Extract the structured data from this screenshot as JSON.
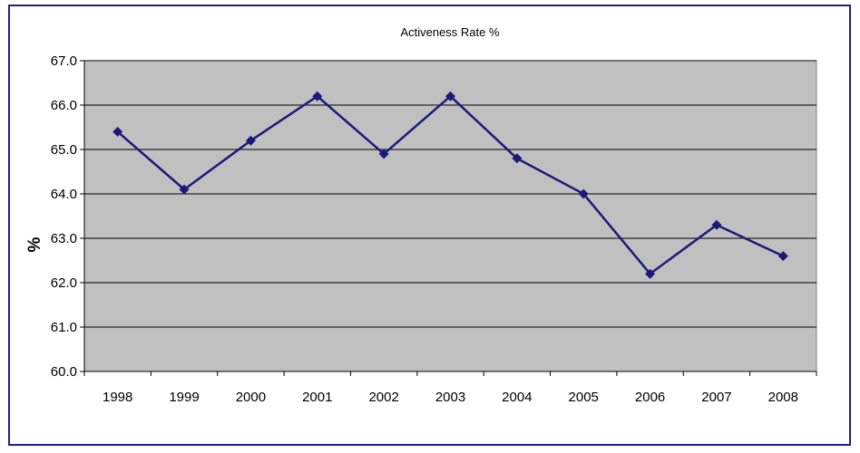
{
  "chart_data": {
    "type": "line",
    "title": "Activeness Rate  %",
    "xlabel": "",
    "ylabel": "%",
    "categories": [
      "1998",
      "1999",
      "2000",
      "2001",
      "2002",
      "2003",
      "2004",
      "2005",
      "2006",
      "2007",
      "2008"
    ],
    "series": [
      {
        "values": [
          65.4,
          64.1,
          65.2,
          66.2,
          64.9,
          66.2,
          64.8,
          64.0,
          62.2,
          63.3,
          62.6
        ],
        "color": "#1a1a7a",
        "marker": "diamond"
      }
    ],
    "ylim": [
      60.0,
      67.0
    ],
    "yticks": [
      "60.0",
      "61.0",
      "62.0",
      "63.0",
      "64.0",
      "65.0",
      "66.0",
      "67.0"
    ],
    "grid": true,
    "legend": "none",
    "colors": {
      "plot_background": "#c0c0c0",
      "gridline": "#000000",
      "frame_border": "#1f1f8a"
    }
  }
}
